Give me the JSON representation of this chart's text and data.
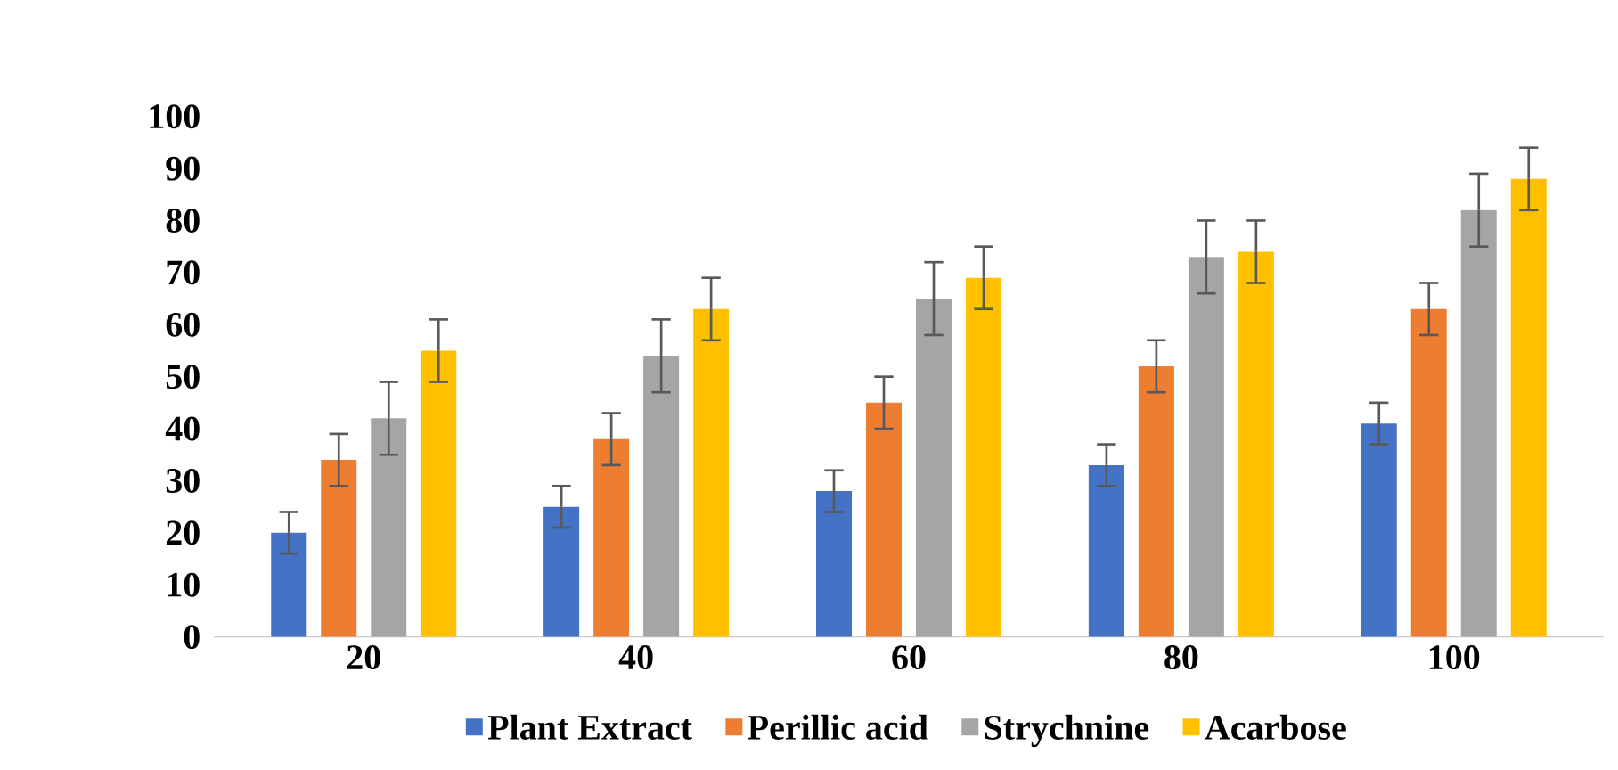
{
  "chart_data": {
    "type": "bar",
    "categories": [
      "20",
      "40",
      "60",
      "80",
      "100"
    ],
    "series": [
      {
        "name": "Plant Extract",
        "color": "#4472c4",
        "values": [
          20,
          25,
          28,
          33,
          41
        ],
        "errors": [
          4,
          4,
          4,
          4,
          4
        ]
      },
      {
        "name": "Perillic acid",
        "color": "#ed7d31",
        "values": [
          34,
          38,
          45,
          52,
          63
        ],
        "errors": [
          5,
          5,
          5,
          5,
          5
        ]
      },
      {
        "name": "Strychnine",
        "color": "#a5a5a5",
        "values": [
          42,
          54,
          65,
          73,
          82
        ],
        "errors": [
          7,
          7,
          7,
          7,
          7
        ]
      },
      {
        "name": "Acarbose",
        "color": "#ffc000",
        "values": [
          55,
          63,
          69,
          74,
          88
        ],
        "errors": [
          6,
          6,
          6,
          6,
          6
        ]
      }
    ],
    "ylim": [
      0,
      100
    ],
    "yticks": [
      0,
      10,
      20,
      30,
      40,
      50,
      60,
      70,
      80,
      90,
      100
    ],
    "legend": "bottom"
  }
}
